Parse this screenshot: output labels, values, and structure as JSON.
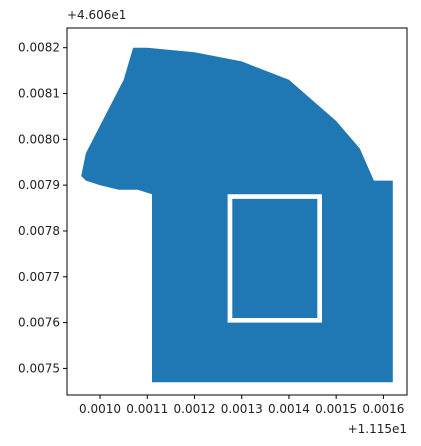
{
  "chart_data": {
    "type": "area",
    "title": "",
    "xlabel": "",
    "ylabel": "",
    "x_offset_label": "+1.115e1",
    "y_offset_label": "+4.606e1",
    "xlim": [
      0.00093,
      0.00165
    ],
    "ylim": [
      0.007442,
      0.008243
    ],
    "x_ticks": [
      0.001,
      0.0011,
      0.0012,
      0.0013,
      0.0014,
      0.0015,
      0.0016
    ],
    "x_tick_labels": [
      "0.0010",
      "0.0011",
      "0.0012",
      "0.0013",
      "0.0014",
      "0.0015",
      "0.0016"
    ],
    "y_ticks": [
      0.0075,
      0.0076,
      0.0077,
      0.0078,
      0.0079,
      0.008,
      0.0081,
      0.0082
    ],
    "y_tick_labels": [
      "0.0075",
      "0.0076",
      "0.0077",
      "0.0078",
      "0.0079",
      "0.0080",
      "0.0081",
      "0.0082"
    ],
    "grid": false,
    "color": "#1f77b4",
    "shape_outer": {
      "x": [
        0.00096,
        0.00097,
        0.00105,
        0.00107,
        0.0011,
        0.0012,
        0.0013,
        0.0014,
        0.0015,
        0.00155,
        0.00158,
        0.00161,
        0.00162,
        0.00162,
        0.00111,
        0.00111,
        0.00108,
        0.00104,
        0.001,
        0.00097
      ],
      "y": [
        0.00792,
        0.00797,
        0.00813,
        0.0082,
        0.0082,
        0.00819,
        0.00817,
        0.00813,
        0.00804,
        0.00798,
        0.00791,
        0.00791,
        0.00791,
        0.00747,
        0.00747,
        0.00788,
        0.00789,
        0.00789,
        0.0079,
        0.00791
      ]
    },
    "hole": {
      "x": [
        0.00127,
        0.00147,
        0.00147,
        0.00127
      ],
      "y": [
        0.00788,
        0.00788,
        0.0076,
        0.0076
      ]
    },
    "inner_block": {
      "x": [
        0.00128,
        0.00146,
        0.00146,
        0.00128
      ],
      "y": [
        0.00787,
        0.00787,
        0.00761,
        0.00761
      ]
    }
  }
}
